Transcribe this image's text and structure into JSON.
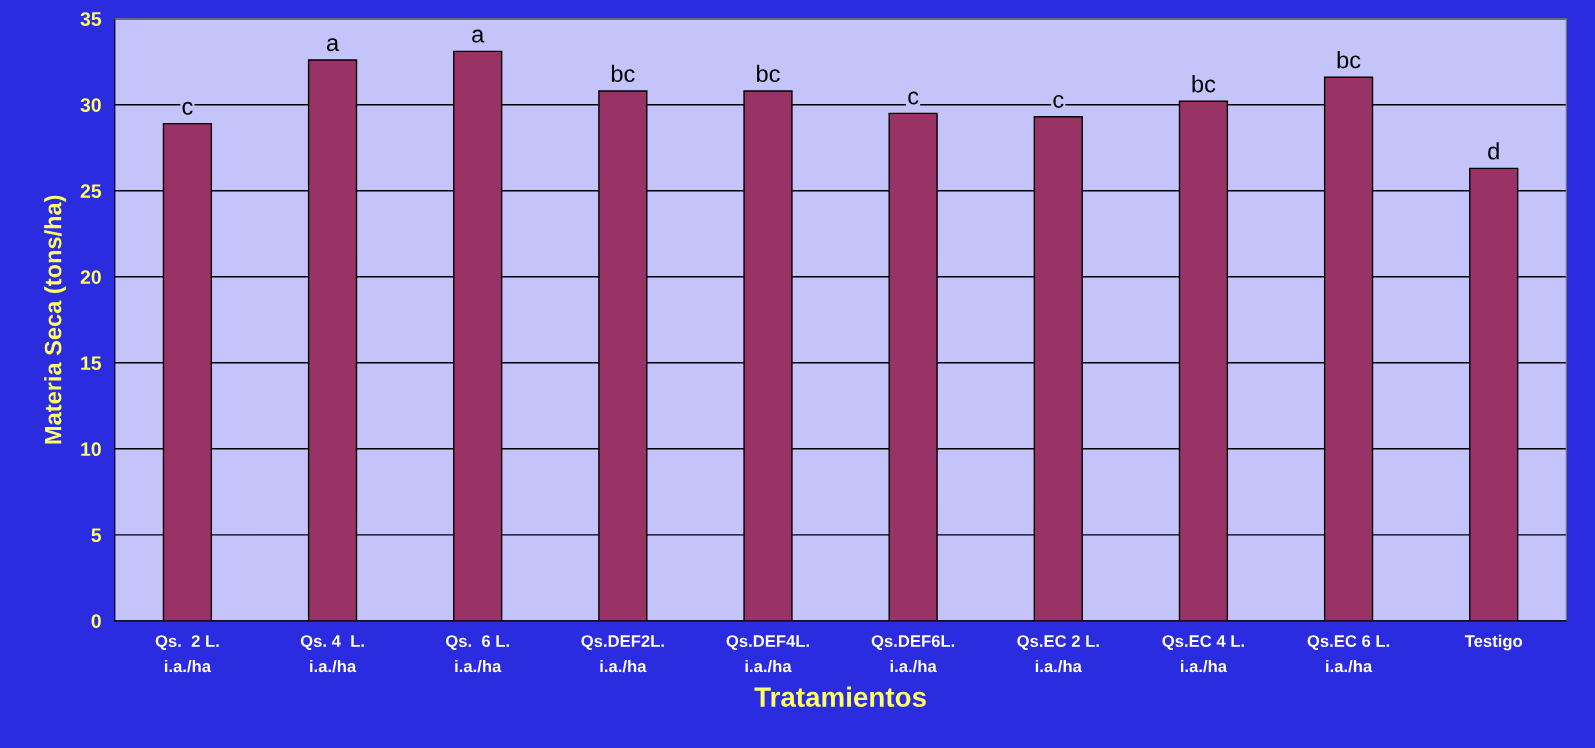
{
  "chart_data": {
    "type": "bar",
    "xlabel": "Tratamientos",
    "ylabel": "Materia Seca (tons/ha)",
    "categories": [
      "Qs.  2 L.\ni.a./ha",
      "Qs. 4  L.\ni.a./ha",
      "Qs.  6 L.\ni.a./ha",
      "Qs.DEF2L.\ni.a./ha",
      "Qs.DEF4L.\ni.a./ha",
      "Qs.DEF6L.\ni.a./ha",
      "Qs.EC 2 L.\ni.a./ha",
      "Qs.EC 4 L.\ni.a./ha",
      "Qs.EC 6 L.\ni.a./ha",
      "Testigo"
    ],
    "values": [
      28.9,
      32.6,
      33.1,
      30.8,
      30.8,
      29.5,
      29.3,
      30.2,
      31.6,
      26.3
    ],
    "color": "#993366",
    "ylim": [
      0,
      35
    ],
    "yticks": [
      0,
      5,
      10,
      15,
      20,
      25,
      30,
      35
    ],
    "grid": "y",
    "annotations": [
      {
        "text": "c",
        "x": "Qs.  2 L.\ni.a./ha",
        "y": 28.9
      },
      {
        "text": "a",
        "x": "Qs. 4  L.\ni.a./ha",
        "y": 32.6
      },
      {
        "text": "a",
        "x": "Qs.  6 L.\ni.a./ha",
        "y": 33.1
      },
      {
        "text": "bc",
        "x": "Qs.DEF2L.\ni.a./ha",
        "y": 30.8
      },
      {
        "text": "bc",
        "x": "Qs.DEF4L.\ni.a./ha",
        "y": 30.8
      },
      {
        "text": "c",
        "x": "Qs.DEF6L.\ni.a./ha",
        "y": 29.5
      },
      {
        "text": "c",
        "x": "Qs.EC 2 L.\ni.a./ha",
        "y": 29.3
      },
      {
        "text": "bc",
        "x": "Qs.EC 4 L.\ni.a./ha",
        "y": 30.2
      },
      {
        "text": "bc",
        "x": "Qs.EC 6 L.\ni.a./ha",
        "y": 31.6
      },
      {
        "text": "d",
        "x": "Testigo",
        "y": 26.3
      }
    ]
  }
}
